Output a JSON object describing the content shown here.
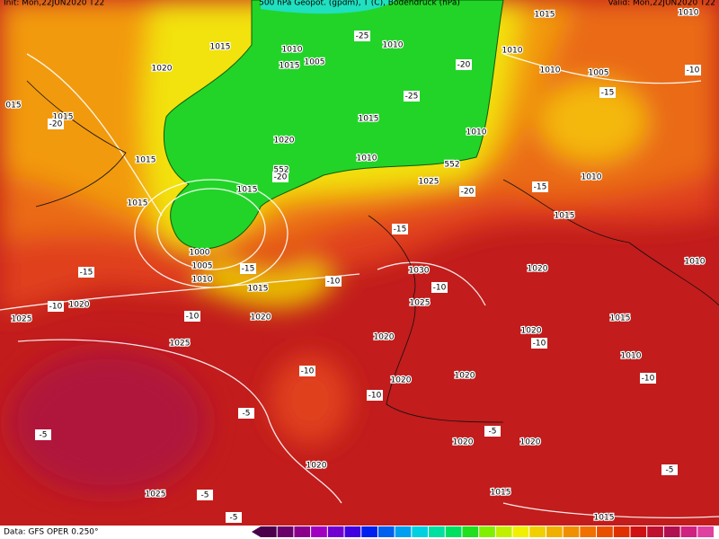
{
  "header": {
    "init": "Init: Mon,22JUN2020 T22",
    "title": "500 hPa Geopot. (gpdm), T (C), Bodendruck (hPa)",
    "valid": "Valid: Mon,22JUN2020 T22"
  },
  "footer": {
    "source": "Data: GFS OPER 0.250°"
  },
  "pressure_labels": [
    "1015",
    "1020",
    "1015",
    "1015",
    "1015",
    "1010",
    "1015",
    "1005",
    "1010",
    "1015",
    "1020",
    "1010",
    "1015",
    "1000",
    "1005",
    "1010",
    "1015",
    "1020",
    "1025",
    "1020",
    "1025",
    "1030",
    "1025",
    "1020",
    "1020",
    "1020",
    "1020",
    "1020",
    "1020",
    "1025",
    "1015",
    "1015",
    "1015",
    "1010",
    "1010",
    "1010",
    "1005",
    "1010",
    "1015",
    "1020",
    "1010",
    "1015",
    "1020",
    "1010",
    "1025",
    "1010",
    "015"
  ],
  "temperature_labels": [
    "-25",
    "-20",
    "-25",
    "-20",
    "-20",
    "-20",
    "-15",
    "-15",
    "-10",
    "-15",
    "-15",
    "-15",
    "-10",
    "-10",
    "-10",
    "-10",
    "-10",
    "-10",
    "-10",
    "-10",
    "-5",
    "-5",
    "-5",
    "-5",
    "-5",
    "-5"
  ],
  "geopotential_labels": [
    "552",
    "552"
  ]
}
